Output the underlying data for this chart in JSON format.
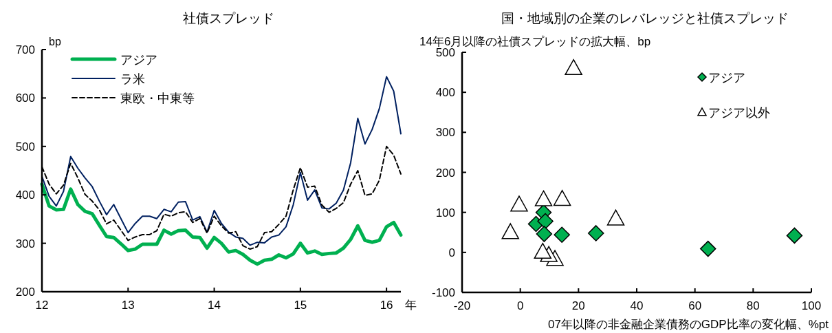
{
  "chart_data": [
    {
      "type": "line",
      "title": "社債スプレッド",
      "xlabel": "年",
      "ylabel": "bp",
      "x": [
        "2012-01",
        "2012-02",
        "2012-03",
        "2012-04",
        "2012-05",
        "2012-06",
        "2012-07",
        "2012-08",
        "2012-09",
        "2012-10",
        "2012-11",
        "2012-12",
        "2013-01",
        "2013-02",
        "2013-03",
        "2013-04",
        "2013-05",
        "2013-06",
        "2013-07",
        "2013-08",
        "2013-09",
        "2013-10",
        "2013-11",
        "2013-12",
        "2014-01",
        "2014-02",
        "2014-03",
        "2014-04",
        "2014-05",
        "2014-06",
        "2014-07",
        "2014-08",
        "2014-09",
        "2014-10",
        "2014-11",
        "2014-12",
        "2015-01",
        "2015-02",
        "2015-03",
        "2015-04",
        "2015-05",
        "2015-06",
        "2015-07",
        "2015-08",
        "2015-09",
        "2015-10",
        "2015-11",
        "2015-12",
        "2016-01",
        "2016-02",
        "2016-03"
      ],
      "series": [
        {
          "name": "アジア",
          "color": "#00b050",
          "line_style": "solid",
          "values": [
            422,
            377,
            369,
            370,
            412,
            380,
            366,
            361,
            337,
            314,
            312,
            299,
            285,
            288,
            298,
            298,
            298,
            327,
            319,
            326,
            327,
            313,
            312,
            290,
            312,
            300,
            282,
            285,
            277,
            265,
            257,
            265,
            267,
            276,
            270,
            278,
            300,
            280,
            284,
            277,
            279,
            280,
            290,
            308,
            336,
            306,
            302,
            306,
            334,
            343,
            317
          ]
        },
        {
          "name": "ラ米",
          "color": "#002060",
          "line_style": "solid",
          "values": [
            438,
            397,
            377,
            407,
            479,
            455,
            435,
            417,
            387,
            359,
            380,
            351,
            322,
            341,
            356,
            356,
            351,
            370,
            365,
            385,
            386,
            348,
            355,
            323,
            368,
            341,
            323,
            313,
            310,
            296,
            302,
            301,
            313,
            317,
            334,
            379,
            446,
            389,
            410,
            373,
            371,
            383,
            410,
            466,
            558,
            505,
            535,
            578,
            644,
            614,
            526
          ]
        },
        {
          "name": "東欧・中東等",
          "color": "#000000",
          "line_style": "dashed",
          "values": [
            458,
            422,
            402,
            420,
            465,
            435,
            401,
            387,
            369,
            340,
            348,
            327,
            306,
            313,
            318,
            318,
            326,
            360,
            356,
            363,
            365,
            343,
            351,
            321,
            356,
            336,
            321,
            324,
            295,
            288,
            293,
            322,
            324,
            339,
            356,
            410,
            456,
            416,
            418,
            379,
            364,
            372,
            384,
            422,
            450,
            399,
            402,
            430,
            500,
            482,
            443
          ]
        }
      ],
      "xlim": [
        "2012-01",
        "2016-03"
      ],
      "xticks": [
        {
          "value": "2012-01",
          "label": "12"
        },
        {
          "value": "2013-01",
          "label": "13"
        },
        {
          "value": "2014-01",
          "label": "14"
        },
        {
          "value": "2015-01",
          "label": "15"
        },
        {
          "value": "2016-01",
          "label": "16"
        }
      ],
      "ylim": [
        200,
        700
      ],
      "yticks": [
        200,
        300,
        400,
        500,
        600,
        700
      ],
      "grid": false,
      "legend": "top left",
      "marker": "none"
    },
    {
      "type": "scatter",
      "title": "国・地域別の企業のレバレッジと社債スプレッド",
      "xlabel": "07年以降の非金融企業債務のGDP比率の変化幅、%pt",
      "ylabel": "14年6月以降の社債スプレッドの拡大幅、bp",
      "series": [
        {
          "name": "アジア",
          "color": "#00b050",
          "marker": "diamond",
          "x": [
            8,
            5.4,
            8.6,
            8.2,
            14.3,
            26,
            64.5,
            94.2
          ],
          "values": [
            100,
            71,
            78,
            46,
            44,
            48,
            9,
            42
          ]
        },
        {
          "name": "アジア以外",
          "color": "#ffffff",
          "marker": "triangle",
          "x": [
            11.9,
            9.8,
            7.7,
            18.3,
            -0.4,
            -3.4,
            8,
            14.4,
            32.8
          ],
          "values": [
            -16,
            -6,
            2,
            461,
            120,
            51,
            133,
            134,
            85
          ]
        }
      ],
      "xlim": [
        -20,
        100
      ],
      "xticks": [
        -20,
        0,
        20,
        40,
        60,
        80,
        100
      ],
      "ylim": [
        -100,
        500
      ],
      "yticks": [
        -100,
        0,
        100,
        200,
        300,
        400,
        500
      ],
      "grid": false,
      "legend": "top right"
    }
  ]
}
